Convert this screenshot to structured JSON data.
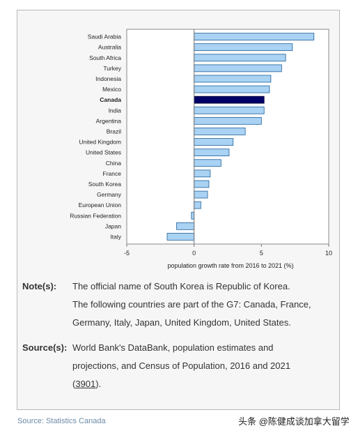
{
  "chart_data": {
    "type": "bar",
    "orientation": "horizontal",
    "categories": [
      "Saudi Arabia",
      "Australia",
      "South Africa",
      "Turkey",
      "Indonesia",
      "Mexico",
      "Canada",
      "India",
      "Argentina",
      "Brazil",
      "United Kingdom",
      "United States",
      "China",
      "France",
      "South Korea",
      "Germany",
      "European Union",
      "Russian Federation",
      "Japan",
      "Italy"
    ],
    "values": [
      8.9,
      7.3,
      6.8,
      6.5,
      5.7,
      5.6,
      5.2,
      5.2,
      5.0,
      3.8,
      2.9,
      2.6,
      2.0,
      1.2,
      1.1,
      1.0,
      0.5,
      -0.2,
      -1.3,
      -2.0
    ],
    "highlight": "Canada",
    "xlabel": "population growth rate from 2016 to 2021 (%)",
    "xlim": [
      -5,
      10
    ],
    "xticks": [
      "-5",
      "0",
      "5",
      "10"
    ],
    "colors": {
      "bar": "#a9d2f3",
      "bar_border": "#1f5f99",
      "highlight": "#000066",
      "highlight_border": "#000033"
    }
  },
  "notes": {
    "label": "Note(s):",
    "line1": "The official name of South Korea is Republic of Korea.",
    "line2": "The following countries are part of the G7: Canada, France, Germany, Italy, Japan, United Kingdom, United States."
  },
  "sources": {
    "label": "Source(s):",
    "text": "World Bank's DataBank, population estimates and projections, and Census of Population, 2016 and 2021 (",
    "link": "3901",
    "end": ")."
  },
  "footer": {
    "source": "Source: Statistics Canada"
  },
  "watermark": "头条 @陈健成谈加拿大留学"
}
